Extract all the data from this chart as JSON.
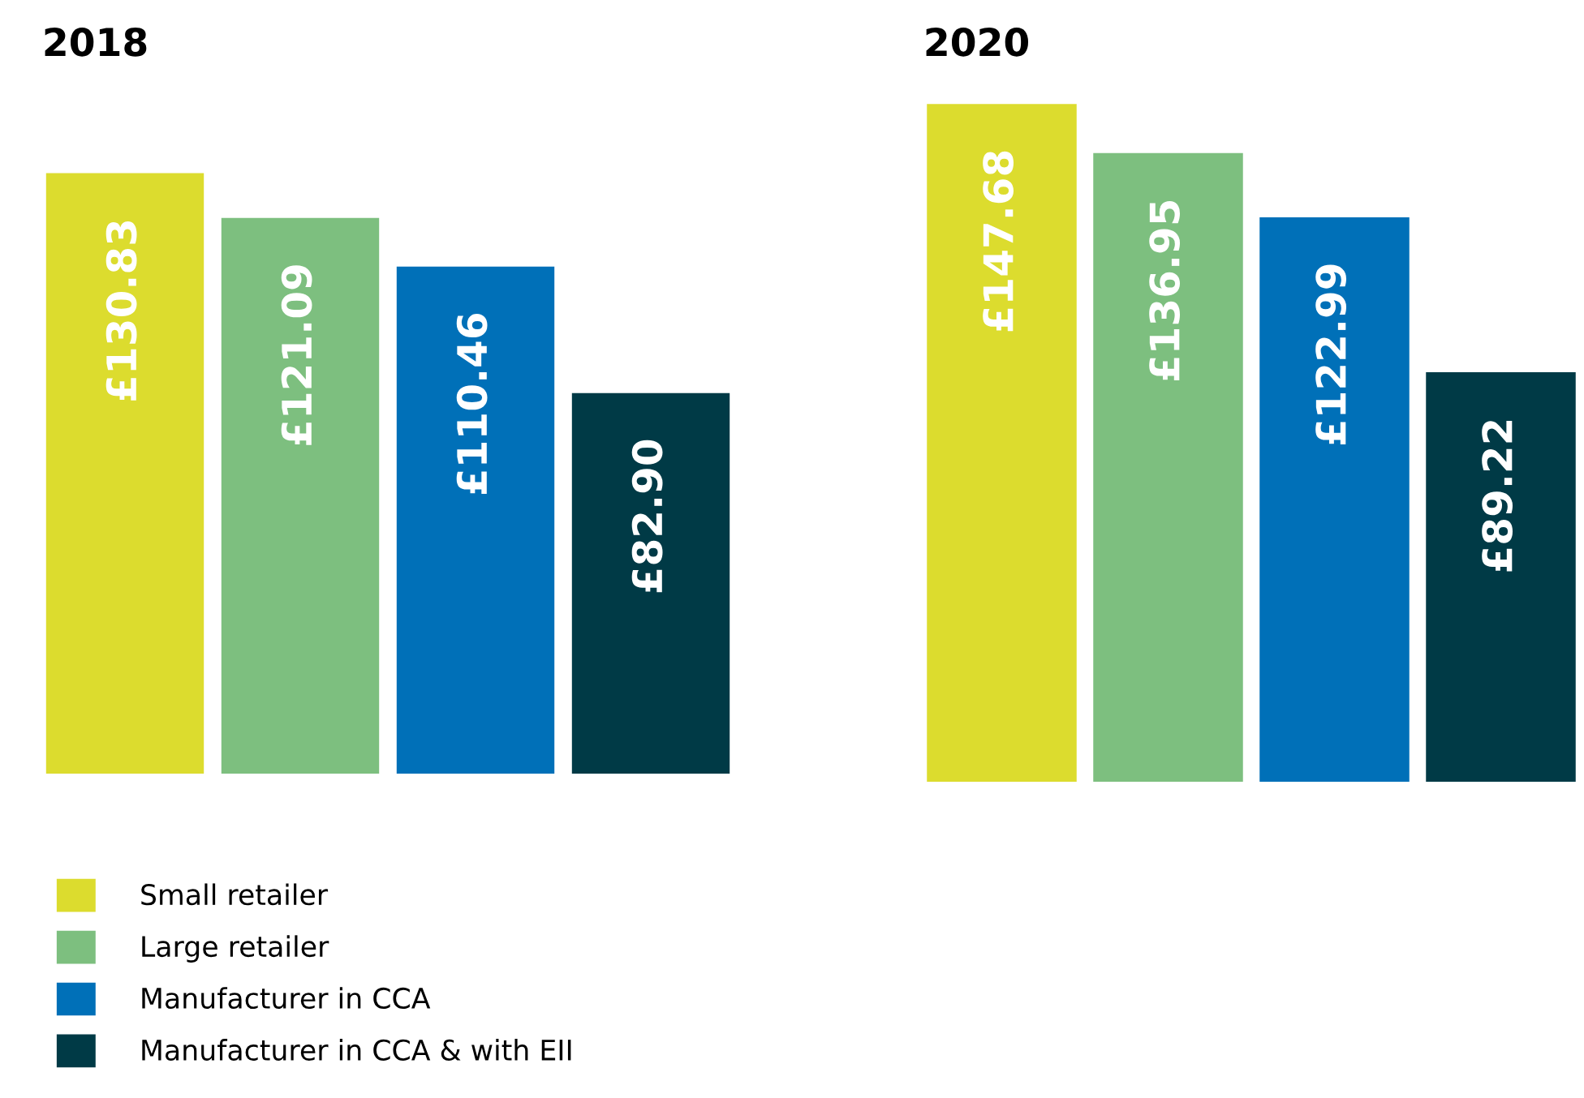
{
  "chart_data": [
    {
      "type": "bar",
      "title": "2018",
      "categories": [
        null
      ],
      "tick_labels": false,
      "legend": "bottom left",
      "series": [
        {
          "name": "Small retailer",
          "color": "#dcdc2e",
          "values": [
            130.83
          ],
          "value_labels": [
            "£130.83"
          ]
        },
        {
          "name": "Large retailer",
          "color": "#7dbf7f",
          "values": [
            121.09
          ],
          "value_labels": [
            "£121.09"
          ]
        },
        {
          "name": "Manufacturer in CCA",
          "color": "#0070b8",
          "values": [
            110.46
          ],
          "value_labels": [
            "£110.46"
          ]
        },
        {
          "name": "Manufacturer in CCA & with EII",
          "color": "#003a46",
          "values": [
            82.9
          ],
          "value_labels": [
            "£82.90"
          ]
        }
      ]
    },
    {
      "type": "bar",
      "title": "2020",
      "categories": [
        null
      ],
      "tick_labels": false,
      "series": [
        {
          "color": "#dcdc2e",
          "values": [
            147.68
          ],
          "value_labels": [
            "£147.68"
          ]
        },
        {
          "color": "#7dbf7f",
          "values": [
            136.95
          ],
          "value_labels": [
            "£136.95"
          ]
        },
        {
          "color": "#0070b8",
          "values": [
            122.99
          ],
          "value_labels": [
            "£122.99"
          ]
        },
        {
          "color": "#003a46",
          "values": [
            89.22
          ],
          "value_labels": [
            "£89.22"
          ]
        }
      ]
    }
  ]
}
